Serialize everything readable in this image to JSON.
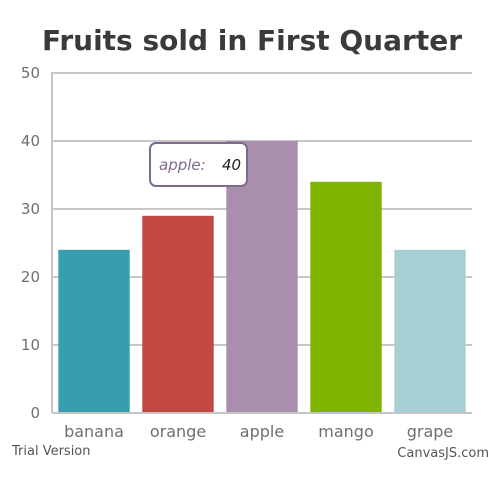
{
  "chart_data": {
    "type": "bar",
    "title": "Fruits sold in First Quarter",
    "categories": [
      "banana",
      "orange",
      "apple",
      "mango",
      "grape"
    ],
    "values": [
      24,
      29,
      40,
      34,
      24
    ],
    "colors": [
      "#369ead",
      "#c24642",
      "#a890ad",
      "#7fb500",
      "#a5cfd2"
    ],
    "ylim": [
      0,
      50
    ],
    "yticks": [
      "0",
      "10",
      "20",
      "30",
      "40",
      "50"
    ],
    "grid": true,
    "xlabel": "",
    "ylabel": ""
  },
  "tooltip": {
    "label": "apple:",
    "value": "40",
    "label_color": "#7e6a8a"
  },
  "footer": {
    "left": "Trial Version",
    "right": "CanvasJS.com"
  }
}
